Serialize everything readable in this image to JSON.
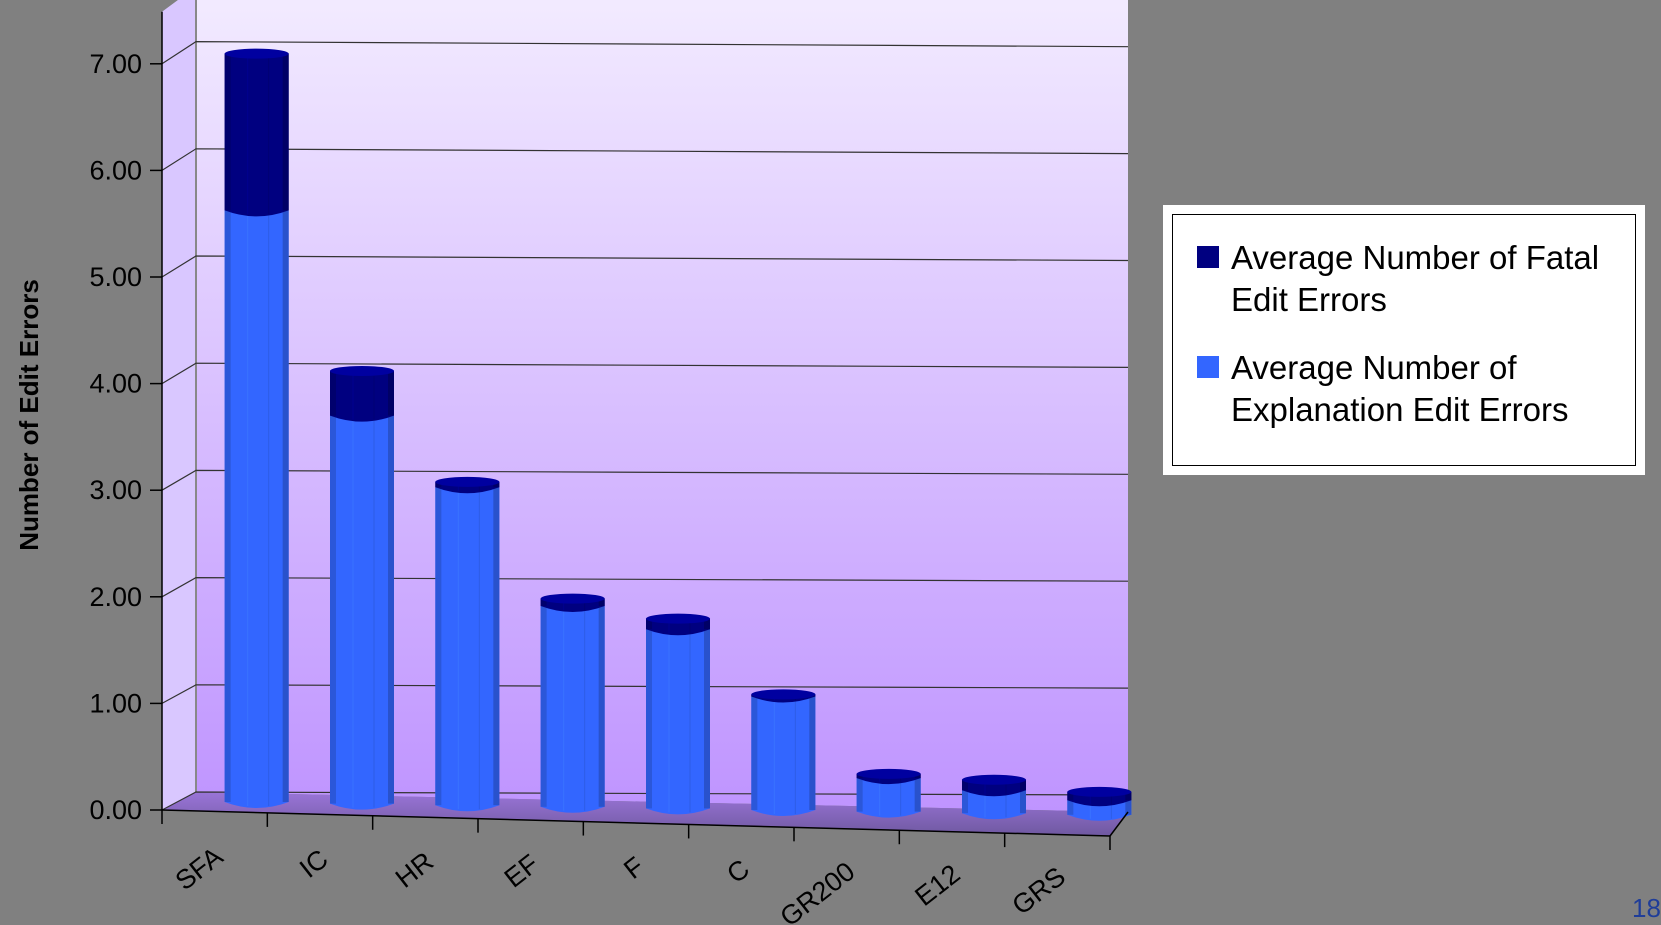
{
  "chart_data": {
    "type": "bar",
    "stacked": true,
    "style": "3d-cylinder",
    "categories": [
      "SFA",
      "IC",
      "HR",
      "EF",
      "F",
      "C",
      "GR200",
      "E12",
      "GRS"
    ],
    "series": [
      {
        "name": "Average Number of Explanation Edit Errors",
        "color": "#3366ff",
        "values": [
          5.55,
          3.65,
          3.0,
          1.9,
          1.7,
          1.08,
          0.32,
          0.22,
          0.14
        ]
      },
      {
        "name": "Average Number of Fatal Edit Errors",
        "color": "#000080",
        "values": [
          1.47,
          0.42,
          0.05,
          0.07,
          0.1,
          0.02,
          0.04,
          0.1,
          0.08
        ]
      }
    ],
    "ylabel": "Number of Edit Errors",
    "xlabel": "",
    "title": "",
    "ylim": [
      0,
      7.0
    ],
    "yticks": [
      "0.00",
      "1.00",
      "2.00",
      "3.00",
      "4.00",
      "5.00",
      "6.00",
      "7.00"
    ],
    "grid": true,
    "legend_position": "right"
  },
  "page_number": "18"
}
